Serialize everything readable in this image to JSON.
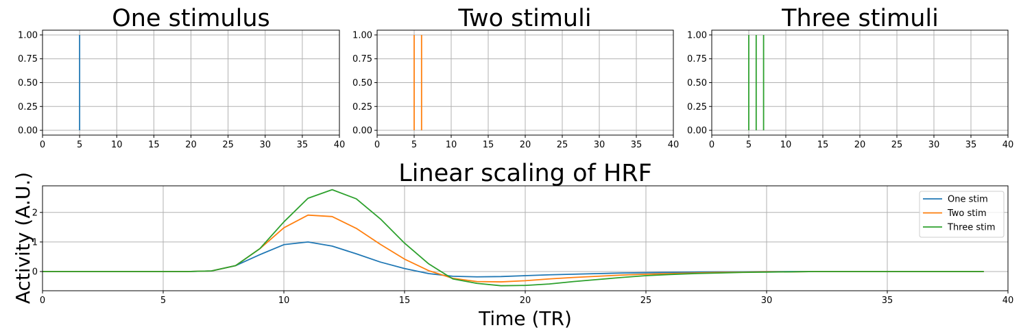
{
  "chart_data": [
    {
      "type": "line",
      "title": "One stimulus",
      "xlabel": "",
      "ylabel": "",
      "xlim": [
        0,
        40
      ],
      "ylim": [
        -0.05,
        1.05
      ],
      "xticks": [
        "0",
        "5",
        "10",
        "15",
        "20",
        "25",
        "30",
        "35",
        "40"
      ],
      "yticks": [
        "0.00",
        "0.25",
        "0.50",
        "0.75",
        "1.00"
      ],
      "grid": true,
      "series": [
        {
          "color": "#1f77b4",
          "stimuli_x": [
            5
          ],
          "stimulus_height": 1
        }
      ]
    },
    {
      "type": "line",
      "title": "Two stimuli",
      "xlabel": "",
      "ylabel": "",
      "xlim": [
        0,
        40
      ],
      "ylim": [
        -0.05,
        1.05
      ],
      "xticks": [
        "0",
        "5",
        "10",
        "15",
        "20",
        "25",
        "30",
        "35",
        "40"
      ],
      "yticks": [
        "0.00",
        "0.25",
        "0.50",
        "0.75",
        "1.00"
      ],
      "grid": true,
      "series": [
        {
          "color": "#ff7f0e",
          "stimuli_x": [
            5,
            6
          ],
          "stimulus_height": 1
        }
      ]
    },
    {
      "type": "line",
      "title": "Three stimuli",
      "xlabel": "",
      "ylabel": "",
      "xlim": [
        0,
        40
      ],
      "ylim": [
        -0.05,
        1.05
      ],
      "xticks": [
        "0",
        "5",
        "10",
        "15",
        "20",
        "25",
        "30",
        "35",
        "40"
      ],
      "yticks": [
        "0.00",
        "0.25",
        "0.50",
        "0.75",
        "1.00"
      ],
      "grid": true,
      "series": [
        {
          "color": "#2ca02c",
          "stimuli_x": [
            5,
            6,
            7
          ],
          "stimulus_height": 1
        }
      ]
    },
    {
      "type": "line",
      "title": "Linear scaling of HRF",
      "xlabel": "Time (TR)",
      "ylabel": "Activity (A.U.)",
      "xlim": [
        0,
        40
      ],
      "ylim": [
        -0.65,
        2.9
      ],
      "xticks": [
        "0",
        "5",
        "10",
        "15",
        "20",
        "25",
        "30",
        "35",
        "40"
      ],
      "yticks": [
        "0",
        "1",
        "2"
      ],
      "grid": true,
      "legend": "top-right",
      "x": [
        0,
        1,
        2,
        3,
        4,
        5,
        6,
        7,
        8,
        9,
        10,
        11,
        12,
        13,
        14,
        15,
        16,
        17,
        18,
        19,
        20,
        21,
        22,
        23,
        24,
        25,
        26,
        27,
        28,
        29,
        30,
        31,
        32,
        33,
        34,
        35,
        36,
        37,
        38,
        39
      ],
      "series": [
        {
          "name": "One stim",
          "color": "#1f77b4",
          "values": [
            0,
            0,
            0,
            0,
            0,
            0,
            0,
            0.02,
            0.2,
            0.57,
            0.91,
            1.0,
            0.86,
            0.6,
            0.32,
            0.1,
            -0.07,
            -0.16,
            -0.18,
            -0.17,
            -0.14,
            -0.11,
            -0.09,
            -0.07,
            -0.05,
            -0.04,
            -0.03,
            -0.02,
            -0.01,
            -0.01,
            0,
            0,
            0,
            0,
            0,
            0,
            0,
            0,
            0,
            0
          ]
        },
        {
          "name": "Two stim",
          "color": "#ff7f0e",
          "values": [
            0,
            0,
            0,
            0,
            0,
            0,
            0,
            0.02,
            0.2,
            0.77,
            1.48,
            1.91,
            1.86,
            1.46,
            0.92,
            0.42,
            0.03,
            -0.23,
            -0.34,
            -0.35,
            -0.31,
            -0.25,
            -0.2,
            -0.16,
            -0.12,
            -0.09,
            -0.07,
            -0.05,
            -0.03,
            -0.02,
            -0.01,
            -0.01,
            0,
            0,
            0,
            0,
            0,
            0,
            0,
            0
          ]
        },
        {
          "name": "Three stim",
          "color": "#2ca02c",
          "values": [
            0,
            0,
            0,
            0,
            0,
            0,
            0,
            0.02,
            0.2,
            0.77,
            1.68,
            2.48,
            2.77,
            2.46,
            1.78,
            0.96,
            0.26,
            -0.25,
            -0.4,
            -0.48,
            -0.47,
            -0.42,
            -0.34,
            -0.27,
            -0.2,
            -0.14,
            -0.1,
            -0.07,
            -0.05,
            -0.03,
            -0.02,
            -0.01,
            0,
            0,
            0,
            0,
            0,
            0,
            0,
            0
          ]
        }
      ]
    }
  ]
}
